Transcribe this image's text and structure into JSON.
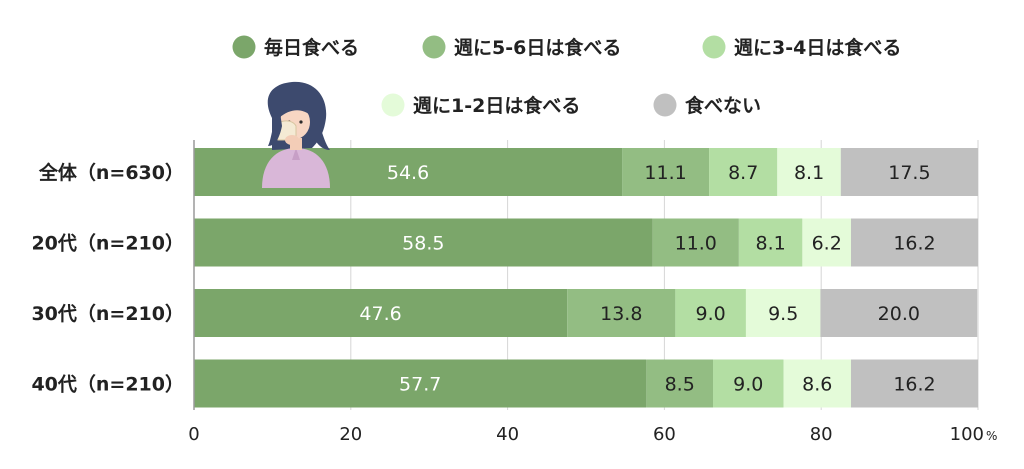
{
  "chart_data": {
    "type": "bar",
    "orientation": "horizontal",
    "stacked": true,
    "categories": [
      "全体（n=630）",
      "20代（n=210）",
      "30代（n=210）",
      "40代（n=210）"
    ],
    "series": [
      {
        "name": "毎日食べる",
        "color": "#7ba66a",
        "label_color": "#ffffff",
        "values": [
          54.6,
          58.5,
          47.6,
          57.7
        ]
      },
      {
        "name": "週に5-6日は食べる",
        "color": "#93bd83",
        "label_color": "#222222",
        "values": [
          11.1,
          11.0,
          13.8,
          8.5
        ]
      },
      {
        "name": "週に3-4日は食べる",
        "color": "#b3dea3",
        "label_color": "#222222",
        "values": [
          8.7,
          8.1,
          9.0,
          9.0
        ]
      },
      {
        "name": "週に1-2日は食べる",
        "color": "#e4fbd9",
        "label_color": "#222222",
        "values": [
          8.1,
          6.2,
          9.5,
          8.6
        ]
      },
      {
        "name": "食べない",
        "color": "#c0c0c0",
        "label_color": "#222222",
        "values": [
          17.5,
          16.2,
          20.0,
          16.2
        ]
      }
    ],
    "data_labels": [
      [
        "54.6",
        "11.1",
        "8.7",
        "8.1",
        "17.5"
      ],
      [
        "58.5",
        "11.0",
        "8.1",
        "6.2",
        "16.2"
      ],
      [
        "47.6",
        "13.8",
        "9.0",
        "9.5",
        "20.0"
      ],
      [
        "57.7",
        "8.5",
        "9.0",
        "8.6",
        "16.2"
      ]
    ],
    "x_ticks": [
      "0",
      "20",
      "40",
      "60",
      "80",
      "100"
    ],
    "x_unit": "%",
    "xlim": [
      0,
      100
    ],
    "grid": "vertical",
    "legend_position": "top",
    "title": "",
    "xlabel": "",
    "ylabel": "",
    "illustration": "woman-eating-bread-icon"
  }
}
